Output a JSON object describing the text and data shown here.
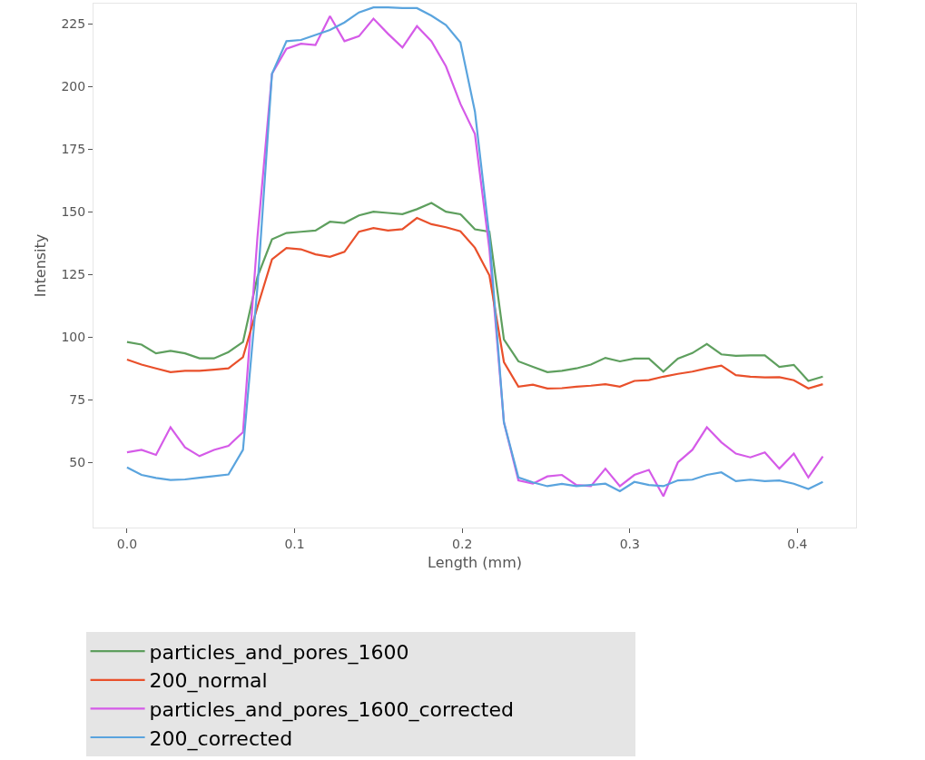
{
  "chart_data": {
    "type": "line",
    "xlabel": "Length (mm)",
    "ylabel": "Intensity",
    "x": [
      0,
      0.00865,
      0.0173,
      0.02595,
      0.0346,
      0.04325,
      0.0519,
      0.06055,
      0.0692,
      0.07785,
      0.0865,
      0.09515,
      0.1038,
      0.11245,
      0.1211,
      0.12975,
      0.1384,
      0.14705,
      0.1557,
      0.16435,
      0.173,
      0.18165,
      0.1903,
      0.19895,
      0.2076,
      0.21625,
      0.2249,
      0.23355,
      0.2422,
      0.25085,
      0.2595,
      0.26815,
      0.2768,
      0.28545,
      0.2941,
      0.30275,
      0.3114,
      0.32005,
      0.3287,
      0.33735,
      0.346,
      0.35465,
      0.3633,
      0.37195,
      0.3806,
      0.38925,
      0.3979,
      0.40655,
      0.4152
    ],
    "xlim": [
      -0.02,
      0.435
    ],
    "xticks": [
      {
        "value": 0,
        "label": "0.0"
      },
      0.1,
      0.2,
      0.3,
      0.4
    ],
    "ylim": [
      24,
      233
    ],
    "yticks": [
      50,
      75,
      100,
      125,
      150,
      175,
      200,
      225
    ],
    "grid": false,
    "legend": "bottom",
    "line_style": "solid",
    "marker": "none",
    "series": [
      {
        "name": "particles_and_pores_1600",
        "color": "#5e9f5e",
        "values": [
          98,
          97,
          93.5,
          94.5,
          93.5,
          91.5,
          91.5,
          94,
          98,
          124,
          139,
          141.5,
          142,
          142.5,
          146,
          145.5,
          148.5,
          150,
          149.5,
          149,
          151,
          153.5,
          150,
          149,
          143,
          142,
          99,
          90.3,
          88.1,
          86,
          86.5,
          87.5,
          89,
          91.7,
          90.3,
          91.4,
          91.4,
          86.2,
          91.4,
          93.6,
          97.2,
          93.1,
          92.5,
          92.7,
          92.7,
          88.1,
          88.9,
          82.5,
          84.2
        ]
      },
      {
        "name": "particles_and_pores_1600_corrected",
        "color": "#d55be8",
        "values": [
          54,
          55,
          53,
          64,
          56,
          52.5,
          55,
          56.6,
          62,
          140,
          205,
          215,
          217,
          216.5,
          228,
          218,
          220,
          227,
          221,
          215.5,
          224,
          218,
          208,
          193,
          181,
          135,
          66,
          42.8,
          41.5,
          44.4,
          45,
          41,
          40.5,
          47.5,
          40.5,
          45,
          47,
          36.5,
          50,
          55,
          64,
          58,
          53.5,
          52,
          54,
          47.5,
          53.5,
          44,
          52.4
        ]
      },
      {
        "name": "200_normal",
        "color": "#e9502b",
        "values": [
          91,
          89,
          87.5,
          86,
          86.5,
          86.5,
          87,
          87.5,
          92,
          112,
          131,
          135.5,
          135,
          133,
          132,
          134,
          142,
          143.5,
          142.5,
          143,
          147.5,
          145,
          143.8,
          142.2,
          135.6,
          124.6,
          90,
          80.2,
          81,
          79.5,
          79.6,
          80.2,
          80.6,
          81.2,
          80.2,
          82.5,
          82.8,
          84.2,
          85.3,
          86.2,
          87.5,
          88.6,
          84.8,
          84.2,
          83.9,
          84,
          82.8,
          79.5,
          81.2
        ]
      },
      {
        "name": "200_corrected",
        "color": "#5aa4de",
        "values": [
          48,
          45,
          43.8,
          43,
          43.2,
          43.9,
          44.5,
          45.2,
          55,
          120,
          205,
          218,
          218.5,
          220.5,
          222.5,
          225.5,
          229.5,
          231.5,
          231.5,
          231.2,
          231.2,
          228.2,
          224.5,
          217.5,
          190,
          140,
          66,
          44,
          42,
          40.5,
          41.4,
          40.5,
          41,
          41.5,
          38.5,
          42.2,
          41,
          40.5,
          42.8,
          43.1,
          45,
          46,
          42.5,
          43.1,
          42.5,
          42.8,
          41.5,
          39.4,
          42.2
        ]
      }
    ]
  }
}
